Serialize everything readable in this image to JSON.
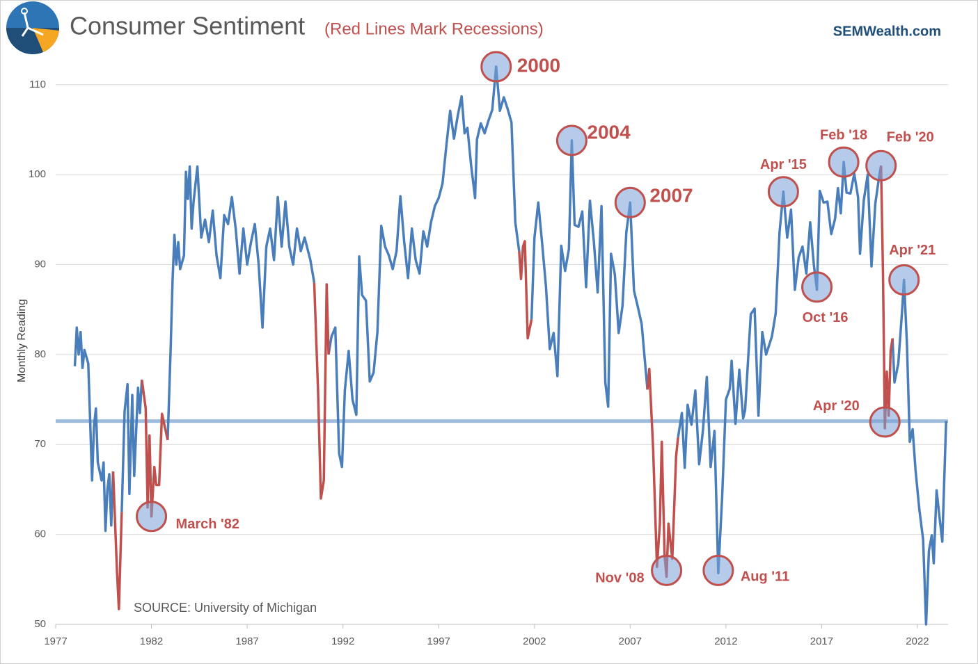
{
  "chart_data": {
    "type": "line",
    "title": "Consumer Sentiment",
    "subtitle": "(Red Lines Mark Recessions)",
    "brand": "SEMWealth.com",
    "source": "SOURCE: University of Michigan",
    "y_label": "Monthly Reading",
    "xlim": [
      1977,
      2023.6
    ],
    "xticks": [
      1977,
      1982,
      1987,
      1992,
      1997,
      2002,
      2007,
      2012,
      2017,
      2022
    ],
    "ylim": [
      50,
      113
    ],
    "yticks": [
      50,
      60,
      70,
      80,
      90,
      100,
      110
    ],
    "grid": true,
    "reference_line": 72.6,
    "reference_color": "#9dbbdc",
    "x": [
      1978.0,
      1978.1,
      1978.2,
      1978.3,
      1978.4,
      1978.5,
      1978.7,
      1978.9,
      1979.0,
      1979.1,
      1979.2,
      1979.4,
      1979.5,
      1979.6,
      1979.7,
      1979.8,
      1979.9,
      1980.0,
      1980.2,
      1980.3,
      1980.45,
      1980.6,
      1980.75,
      1980.85,
      1981.0,
      1981.1,
      1981.3,
      1981.4,
      1981.5,
      1981.7,
      1981.8,
      1981.9,
      1982.0,
      1982.15,
      1982.25,
      1982.4,
      1982.55,
      1982.85,
      1983.0,
      1983.1,
      1983.2,
      1983.3,
      1983.4,
      1983.5,
      1983.7,
      1983.8,
      1983.9,
      1984.0,
      1984.1,
      1984.2,
      1984.4,
      1984.6,
      1984.8,
      1985.0,
      1985.2,
      1985.4,
      1985.6,
      1985.8,
      1986.0,
      1986.2,
      1986.4,
      1986.6,
      1986.8,
      1987.0,
      1987.2,
      1987.4,
      1987.6,
      1987.8,
      1988.0,
      1988.2,
      1988.4,
      1988.6,
      1988.8,
      1989.0,
      1989.2,
      1989.4,
      1989.6,
      1989.8,
      1990.0,
      1990.3,
      1990.5,
      1990.7,
      1990.85,
      1991.0,
      1991.15,
      1991.25,
      1991.4,
      1991.6,
      1991.8,
      1991.95,
      1992.1,
      1992.3,
      1992.5,
      1992.7,
      1992.85,
      1993.0,
      1993.2,
      1993.4,
      1993.6,
      1993.8,
      1994.0,
      1994.2,
      1994.4,
      1994.6,
      1994.8,
      1995.0,
      1995.2,
      1995.4,
      1995.6,
      1995.8,
      1996.0,
      1996.2,
      1996.4,
      1996.6,
      1996.8,
      1997.0,
      1997.2,
      1997.4,
      1997.6,
      1997.8,
      1998.0,
      1998.2,
      1998.35,
      1998.5,
      1998.7,
      1998.9,
      1999.0,
      1999.2,
      1999.4,
      1999.6,
      1999.8,
      2000.0,
      2000.2,
      2000.4,
      2000.6,
      2000.8,
      2001.0,
      2001.2,
      2001.3,
      2001.4,
      2001.5,
      2001.65,
      2001.85,
      2002.0,
      2002.2,
      2002.4,
      2002.6,
      2002.8,
      2003.0,
      2003.2,
      2003.4,
      2003.6,
      2003.8,
      2003.95,
      2004.1,
      2004.3,
      2004.5,
      2004.7,
      2004.9,
      2005.1,
      2005.3,
      2005.5,
      2005.7,
      2005.85,
      2006.0,
      2006.2,
      2006.4,
      2006.6,
      2006.8,
      2007.0,
      2007.2,
      2007.4,
      2007.6,
      2007.9,
      2008.0,
      2008.2,
      2008.4,
      2008.55,
      2008.65,
      2008.8,
      2008.9,
      2009.0,
      2009.2,
      2009.4,
      2009.5,
      2009.7,
      2009.85,
      2010.0,
      2010.2,
      2010.4,
      2010.6,
      2010.8,
      2011.0,
      2011.2,
      2011.4,
      2011.6,
      2011.8,
      2012.0,
      2012.2,
      2012.3,
      2012.5,
      2012.7,
      2012.9,
      2013.0,
      2013.3,
      2013.5,
      2013.7,
      2013.9,
      2014.1,
      2014.4,
      2014.6,
      2014.8,
      2015.0,
      2015.2,
      2015.4,
      2015.6,
      2015.8,
      2016.0,
      2016.2,
      2016.4,
      2016.6,
      2016.75,
      2016.9,
      2017.1,
      2017.3,
      2017.5,
      2017.7,
      2017.85,
      2018.0,
      2018.15,
      2018.3,
      2018.5,
      2018.7,
      2018.9,
      2019.0,
      2019.2,
      2019.4,
      2019.6,
      2019.8,
      2020.0,
      2020.1,
      2020.2,
      2020.3,
      2020.4,
      2020.5,
      2020.6,
      2020.7,
      2020.8,
      2021.0,
      2021.2,
      2021.3,
      2021.45,
      2021.6,
      2021.75,
      2021.9,
      2022.1,
      2022.3,
      2022.45,
      2022.6,
      2022.75,
      2022.85,
      2023.0,
      2023.15,
      2023.3,
      2023.5
    ],
    "series": [
      {
        "color": "#4a7ebb",
        "values": [
          78.7,
          83,
          80,
          82.5,
          78.5,
          80.5,
          79,
          66,
          72,
          74,
          68,
          66,
          68,
          60.4,
          65,
          66.7,
          61,
          67,
          null,
          null,
          62.5,
          73.7,
          76.7,
          64.5,
          75.5,
          66.5,
          76.3,
          73.5,
          77.2,
          null,
          null,
          null,
          null,
          null,
          null,
          null,
          null,
          70.5,
          80.5,
          88,
          93.3,
          90,
          92.5,
          89.5,
          91,
          100.3,
          97.3,
          100.9,
          94,
          97,
          100.9,
          93,
          95,
          92.5,
          96,
          91,
          88.5,
          95.5,
          94.5,
          97.5,
          94,
          89,
          94,
          90,
          92.5,
          94.5,
          90,
          83,
          92,
          94,
          90.5,
          97.5,
          92,
          97,
          92,
          90,
          94,
          91.5,
          93,
          90.5,
          88,
          null,
          null,
          null,
          null,
          80,
          82,
          83,
          69,
          67.5,
          76,
          80.4,
          75,
          73.3,
          90.9,
          86.6,
          86,
          77,
          78,
          82.5,
          94.3,
          92,
          91,
          89.5,
          91.5,
          97.6,
          92.5,
          88.5,
          94,
          90.5,
          89,
          93.7,
          92,
          94.7,
          96.5,
          97.4,
          99,
          103.2,
          107.1,
          104,
          106.6,
          108.7,
          104.6,
          105.2,
          100.9,
          97.4,
          103.9,
          105.7,
          104.6,
          106,
          107.2,
          112,
          107.1,
          108.6,
          107.3,
          105.8,
          94.7,
          91.5,
          null,
          null,
          null,
          null,
          83.9,
          93,
          96.9,
          92.4,
          87.6,
          80.6,
          82.4,
          77.6,
          92.1,
          89.3,
          91.7,
          103.8,
          94.4,
          94.2,
          95.9,
          87.5,
          97.1,
          92.6,
          86.9,
          96.5,
          76.9,
          74.2,
          91.2,
          88.9,
          82.4,
          85.4,
          93.6,
          96.9,
          87.1,
          85.3,
          83.4,
          76.1,
          null,
          null,
          null,
          null,
          null,
          null,
          null,
          null,
          null,
          null,
          70.8,
          73.5,
          67.4,
          74.4,
          72.2,
          76,
          67.8,
          71.6,
          77.5,
          67.5,
          71.5,
          55.7,
          64.1,
          75,
          76.2,
          79.3,
          72.3,
          78.3,
          72.9,
          73.8,
          84.5,
          85.1,
          73.2,
          82.5,
          80,
          82,
          84.6,
          93.6,
          98.1,
          93,
          96.1,
          87.2,
          90.8,
          92,
          89,
          94.7,
          89.8,
          87.2,
          98.2,
          96.9,
          97,
          93.4,
          95.1,
          98.5,
          95.7,
          101.4,
          98,
          97.9,
          100.1,
          97.5,
          91.2,
          97.2,
          100,
          89.8,
          96.8,
          99.8,
          101,
          null,
          null,
          null,
          null,
          null,
          81.8,
          76.9,
          79,
          84.9,
          88.3,
          81.2,
          70.3,
          71.7,
          67.2,
          62.8,
          59.4,
          50,
          58.2,
          59.9,
          56.8,
          64.9,
          62,
          59.2,
          72.6
        ]
      },
      {
        "color": "#c0504d",
        "values": [
          null,
          null,
          null,
          null,
          null,
          null,
          null,
          null,
          null,
          null,
          null,
          null,
          null,
          null,
          null,
          null,
          null,
          67,
          56,
          51.7,
          62.5,
          null,
          null,
          null,
          null,
          null,
          null,
          null,
          77.2,
          74,
          63,
          71,
          62,
          67.5,
          65.5,
          65.5,
          73.4,
          70.5,
          null,
          null,
          null,
          null,
          null,
          null,
          null,
          null,
          null,
          null,
          null,
          null,
          null,
          null,
          null,
          null,
          null,
          null,
          null,
          null,
          null,
          null,
          null,
          null,
          null,
          null,
          null,
          null,
          null,
          null,
          null,
          null,
          null,
          null,
          null,
          null,
          null,
          null,
          null,
          null,
          null,
          null,
          88,
          76,
          64,
          66,
          87.8,
          80,
          null,
          null,
          null,
          null,
          null,
          null,
          null,
          null,
          null,
          null,
          null,
          null,
          null,
          null,
          null,
          null,
          null,
          null,
          null,
          null,
          null,
          null,
          null,
          null,
          null,
          null,
          null,
          null,
          null,
          null,
          null,
          null,
          null,
          null,
          null,
          null,
          null,
          null,
          null,
          null,
          null,
          null,
          null,
          null,
          null,
          null,
          null,
          null,
          null,
          null,
          null,
          91.5,
          88.4,
          92,
          92.6,
          81.8,
          83.9,
          null,
          null,
          null,
          null,
          null,
          null,
          null,
          null,
          null,
          null,
          null,
          null,
          null,
          null,
          null,
          null,
          null,
          null,
          null,
          null,
          null,
          null,
          null,
          null,
          null,
          null,
          null,
          null,
          null,
          null,
          76.1,
          78.4,
          69.5,
          56.4,
          61.2,
          70.3,
          57.6,
          55.3,
          61.2,
          57.3,
          68.7,
          70.8,
          null,
          null,
          null,
          null,
          null,
          null,
          null,
          null,
          null,
          null,
          null,
          null,
          null,
          null,
          null,
          null,
          null,
          null,
          null,
          null,
          null,
          null,
          null,
          null,
          null,
          null,
          null,
          null,
          null,
          null,
          null,
          null,
          null,
          null,
          null,
          null,
          null,
          null,
          null,
          null,
          null,
          null,
          null,
          null,
          null,
          null,
          null,
          null,
          null,
          null,
          null,
          null,
          null,
          null,
          null,
          101,
          89.1,
          71.8,
          78.1,
          73.2,
          80.4,
          81.8,
          null,
          null,
          null,
          null,
          null,
          null,
          null,
          null,
          null,
          null,
          null,
          null,
          null,
          null,
          null,
          null,
          null,
          null
        ]
      }
    ],
    "annotations": [
      {
        "label": "March '82",
        "x": 1982.0,
        "y": 62
      },
      {
        "label": "2000",
        "x": 2000.0,
        "y": 112
      },
      {
        "label": "2004",
        "x": 2003.95,
        "y": 103.8
      },
      {
        "label": "2007",
        "x": 2007.0,
        "y": 96.9
      },
      {
        "label": "Nov '08",
        "x": 2008.9,
        "y": 56
      },
      {
        "label": "Aug '11",
        "x": 2011.6,
        "y": 56
      },
      {
        "label": "Apr '15",
        "x": 2015.0,
        "y": 98.1
      },
      {
        "label": "Oct '16",
        "x": 2016.75,
        "y": 87.5
      },
      {
        "label": "Feb '18",
        "x": 2018.15,
        "y": 101.4
      },
      {
        "label": "Feb '20",
        "x": 2020.1,
        "y": 101
      },
      {
        "label": "Apr '20",
        "x": 2020.3,
        "y": 72.5
      },
      {
        "label": "Apr '21",
        "x": 2021.3,
        "y": 88.3
      }
    ]
  }
}
